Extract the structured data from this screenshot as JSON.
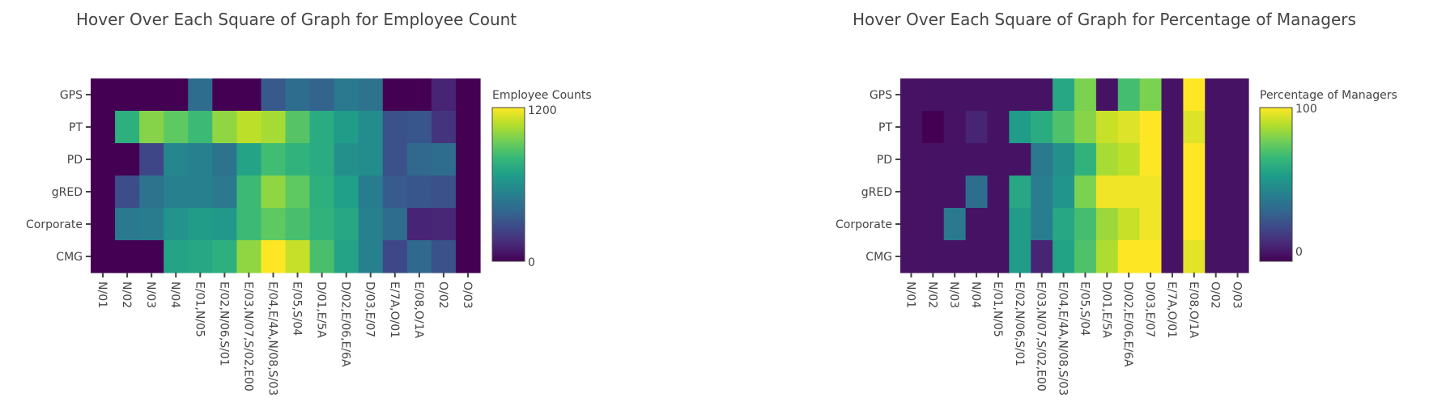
{
  "chart_data": [
    {
      "type": "heatmap",
      "title": "Hover Over Each Square of Graph for Employee Count",
      "x": [
        "N/01",
        "N/02",
        "N/03",
        "N/04",
        "E/01,N/05",
        "E/02,N/06,S/01",
        "E/03,N/07,S/02,E00",
        "E/04,E/4A,N/08,S/03",
        "E/05,S/04",
        "D/01,E/5A",
        "D/02,E/06,E/6A",
        "D/03,E/07",
        "E/7A,O/01",
        "E/08,O/1A",
        "O/02",
        "O/03"
      ],
      "y": [
        "GPS",
        "PT",
        "PD",
        "gRED",
        "Corporate",
        "CMG"
      ],
      "z": [
        [
          0,
          0,
          0,
          0,
          420,
          0,
          0,
          330,
          420,
          380,
          480,
          450,
          0,
          0,
          120,
          0
        ],
        [
          0,
          760,
          980,
          900,
          820,
          1000,
          1080,
          1040,
          880,
          740,
          660,
          580,
          300,
          320,
          180,
          0
        ],
        [
          0,
          0,
          250,
          550,
          520,
          450,
          700,
          830,
          780,
          740,
          600,
          580,
          300,
          400,
          420,
          0
        ],
        [
          0,
          280,
          450,
          520,
          520,
          480,
          820,
          1000,
          900,
          760,
          680,
          500,
          340,
          320,
          300,
          0
        ],
        [
          0,
          480,
          500,
          620,
          660,
          640,
          820,
          900,
          850,
          780,
          720,
          520,
          420,
          120,
          130,
          0
        ],
        [
          0,
          0,
          0,
          700,
          720,
          760,
          1000,
          1200,
          1100,
          850,
          700,
          520,
          260,
          400,
          300,
          0
        ]
      ],
      "zmin": 0,
      "zmax": 1200,
      "colorbar": {
        "title": "Employee Counts",
        "ticks": [
          "0",
          "1200"
        ]
      },
      "colorscale": "Viridis"
    },
    {
      "type": "heatmap",
      "title": "Hover Over Each Square of Graph for Percentage of Managers",
      "x": [
        "N/01",
        "N/02",
        "N/03",
        "N/04",
        "E/01,N/05",
        "E/02,N/06,S/01",
        "E/03,N/07,S/02,E00",
        "E/04,E/4A,N/08,S/03",
        "E/05,S/04",
        "D/01,E/5A",
        "D/02,E/06,E/6A",
        "D/03,E/07",
        "E/7A,O/01",
        "E/08,O/1A",
        "O/02",
        "O/03"
      ],
      "y": [
        "GPS",
        "PT",
        "PD",
        "gRED",
        "Corporate",
        "CMG"
      ],
      "z": [
        [
          5,
          5,
          5,
          5,
          5,
          5,
          5,
          60,
          80,
          5,
          70,
          80,
          5,
          100,
          5,
          5
        ],
        [
          5,
          0,
          5,
          10,
          5,
          55,
          62,
          72,
          82,
          92,
          95,
          100,
          5,
          95,
          5,
          5
        ],
        [
          5,
          5,
          5,
          5,
          5,
          5,
          40,
          50,
          65,
          87,
          90,
          100,
          5,
          100,
          5,
          5
        ],
        [
          5,
          5,
          5,
          35,
          5,
          60,
          42,
          52,
          80,
          98,
          98,
          98,
          5,
          100,
          5,
          5
        ],
        [
          5,
          5,
          40,
          5,
          5,
          55,
          42,
          60,
          70,
          85,
          92,
          98,
          5,
          100,
          5,
          5
        ],
        [
          5,
          5,
          5,
          5,
          5,
          55,
          10,
          58,
          72,
          88,
          100,
          100,
          5,
          96,
          5,
          5
        ]
      ],
      "zmin": 0,
      "zmax": 100,
      "colorbar": {
        "title": "Percentage of Managers",
        "ticks": [
          "0",
          "100"
        ]
      },
      "colorscale": "Viridis"
    }
  ]
}
